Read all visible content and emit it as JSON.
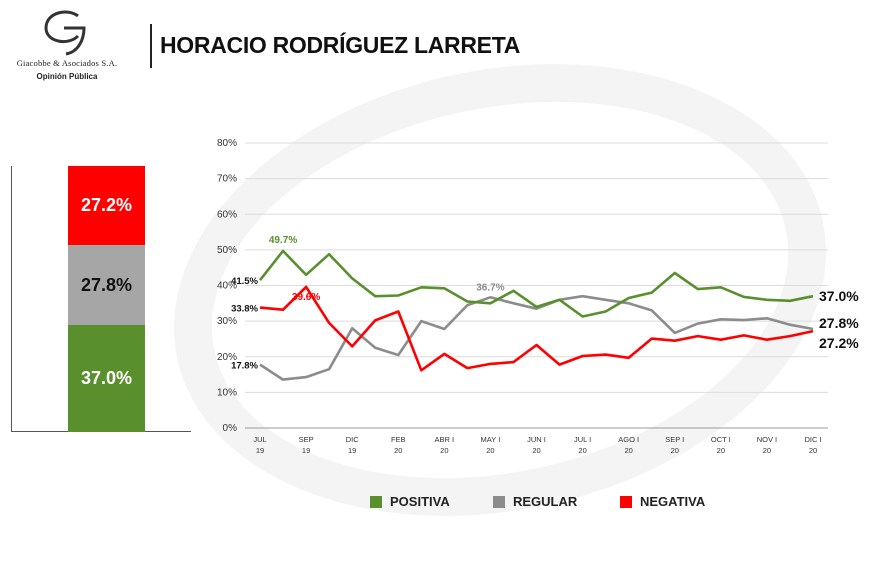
{
  "header": {
    "title": "HORACIO RODRÍGUEZ LARRETA",
    "logo_name": "Giacobbe & Asociados S.A.",
    "logo_sub": "Opinión Pública"
  },
  "summary": {
    "negativa_label": "27.2%",
    "regular_label": "27.8%",
    "positiva_label": "37.0%"
  },
  "legend": {
    "positiva": "POSITIVA",
    "regular": "REGULAR",
    "negativa": "NEGATIVA"
  },
  "colors": {
    "positiva": "#5a8f2d",
    "regular": "#8c8c8c",
    "negativa": "#ff0000",
    "positiva_bar": "#5a8f2d",
    "regular_bar": "#a6a6a6",
    "negativa_bar": "#ff0000"
  },
  "chart_data": [
    {
      "type": "bar",
      "categories": [
        ""
      ],
      "series": [
        {
          "name": "POSITIVA",
          "values": [
            37.0
          ]
        },
        {
          "name": "REGULAR",
          "values": [
            27.8
          ]
        },
        {
          "name": "NEGATIVA",
          "values": [
            27.2
          ]
        }
      ],
      "stacked": true,
      "data_labels": [
        "37.0%",
        "27.8%",
        "27.2%"
      ]
    },
    {
      "type": "line",
      "x_tick_labels": [
        [
          "JUL",
          "19"
        ],
        [
          "SEP",
          "19"
        ],
        [
          "DIC",
          "19"
        ],
        [
          "FEB",
          "20"
        ],
        [
          "ABR I",
          "20"
        ],
        [
          "MAY I",
          "20"
        ],
        [
          "JUN I",
          "20"
        ],
        [
          "JUL I",
          "20"
        ],
        [
          "AGO I",
          "20"
        ],
        [
          "SEP I",
          "20"
        ],
        [
          "OCT I",
          "20"
        ],
        [
          "NOV I",
          "20"
        ],
        [
          "DIC I",
          "20"
        ]
      ],
      "y_ticks": [
        "0%",
        "10%",
        "20%",
        "30%",
        "40%",
        "50%",
        "60%",
        "70%",
        "80%"
      ],
      "ylim": [
        0,
        80
      ],
      "grid": true,
      "legend_position": "bottom",
      "series": [
        {
          "name": "POSITIVA",
          "values": [
            41.5,
            49.7,
            43.0,
            48.8,
            42.0,
            37.0,
            37.2,
            39.5,
            39.2,
            35.5,
            35.0,
            38.5,
            34.0,
            36.0,
            31.3,
            32.7,
            36.5,
            38.0,
            43.5,
            39.0,
            39.5,
            36.8,
            36.0,
            35.7,
            37.0
          ]
        },
        {
          "name": "REGULAR",
          "values": [
            17.8,
            13.6,
            14.3,
            16.5,
            28.0,
            22.5,
            20.5,
            30.0,
            27.8,
            34.5,
            36.7,
            35.0,
            33.5,
            36.0,
            37.0,
            36.0,
            35.0,
            33.0,
            26.7,
            29.3,
            30.5,
            30.3,
            30.8,
            29.0,
            27.8
          ]
        },
        {
          "name": "NEGATIVA",
          "values": [
            33.8,
            33.2,
            39.6,
            29.5,
            22.9,
            30.2,
            32.7,
            16.2,
            20.8,
            16.8,
            18.0,
            18.5,
            23.3,
            17.8,
            20.2,
            20.6,
            19.7,
            25.1,
            24.5,
            25.8,
            24.8,
            26.0,
            24.8,
            25.8,
            27.2
          ]
        }
      ],
      "annotations": [
        {
          "text": "41.5%",
          "series": "POSITIVA",
          "index": 0
        },
        {
          "text": "49.7%",
          "series": "POSITIVA",
          "index": 1
        },
        {
          "text": "33.8%",
          "series": "NEGATIVA",
          "index": 0
        },
        {
          "text": "39.6%",
          "series": "NEGATIVA",
          "index": 2
        },
        {
          "text": "17.8%",
          "series": "REGULAR",
          "index": 0
        },
        {
          "text": "36.7%",
          "series": "REGULAR",
          "index": 10
        },
        {
          "text": "37.0%",
          "series": "POSITIVA",
          "index": 24
        },
        {
          "text": "27.8%",
          "series": "REGULAR",
          "index": 24
        },
        {
          "text": "27.2%",
          "series": "NEGATIVA",
          "index": 24
        }
      ]
    }
  ]
}
